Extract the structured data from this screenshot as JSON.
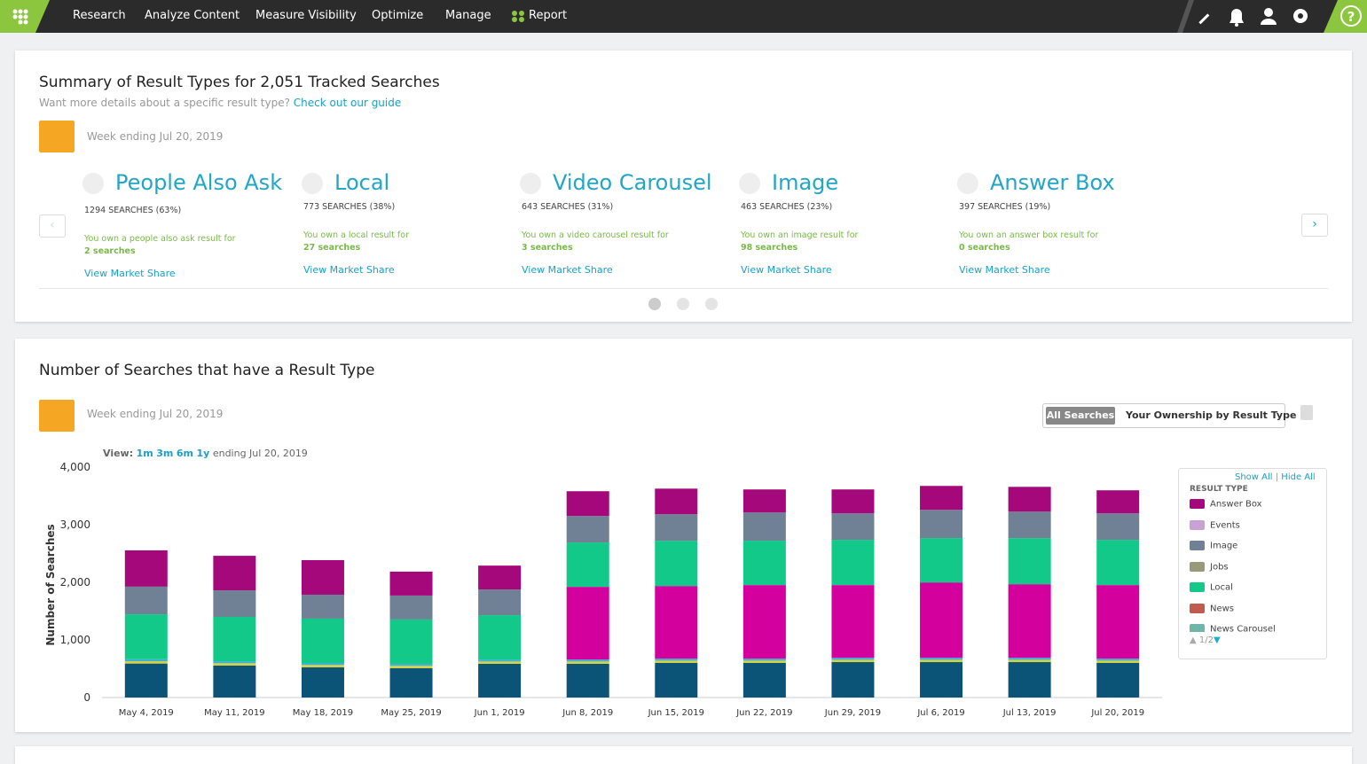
{
  "nav": {
    "items": [
      "Research",
      "Analyze Content",
      "Measure Visibility",
      "Optimize",
      "Manage",
      "Report"
    ]
  },
  "summary": {
    "title": "Summary of Result Types for 2,051 Tracked Searches",
    "subtitle": "Want more details about a specific result type?",
    "guide_link": "Check out our guide",
    "week": "Week ending Jul 20, 2019",
    "items": [
      {
        "title": "People Also Ask",
        "count": "1294 SEARCHES (63%)",
        "own_text": "You own a people also ask result for",
        "own_count": "2 searches",
        "link": "View Market Share"
      },
      {
        "title": "Local",
        "count": "773 SEARCHES (38%)",
        "own_text": "You own a local result for",
        "own_count": "27 searches",
        "link": "View Market Share"
      },
      {
        "title": "Video Carousel",
        "count": "643 SEARCHES (31%)",
        "own_text": "You own a video carousel result for",
        "own_count": "3 searches",
        "link": "View Market Share"
      },
      {
        "title": "Image",
        "count": "463 SEARCHES (23%)",
        "own_text": "You own an image result for",
        "own_count": "98 searches",
        "link": "View Market Share"
      },
      {
        "title": "Answer Box",
        "count": "397 SEARCHES (19%)",
        "own_text": "You own an answer box result for",
        "own_count": "0 searches",
        "link": "View Market Share"
      }
    ]
  },
  "searches": {
    "title": "Number of Searches that have a Result Type",
    "week": "Week ending Jul 20, 2019",
    "toggle": [
      "All Searches",
      "Your Ownership by Result Type"
    ],
    "view_label": "View:",
    "ranges": [
      "1m",
      "3m",
      "6m",
      "1y"
    ],
    "ending": "ending Jul 20, 2019",
    "legend": {
      "show_all": "Show All",
      "hide_all": "Hide All",
      "title": "RESULT TYPE",
      "pager": "1/2"
    }
  },
  "chart_data": {
    "type": "stacked_bar",
    "ylabel": "Number of Searches",
    "categories": [
      "May 4, 2019",
      "May 11, 2019",
      "May 18, 2019",
      "May 25, 2019",
      "Jun 1, 2019",
      "Jun 8, 2019",
      "Jun 15, 2019",
      "Jun 22, 2019",
      "Jun 29, 2019",
      "Jul 6, 2019",
      "Jul 13, 2019",
      "Jul 20, 2019"
    ],
    "ylim": [
      0,
      4000
    ],
    "yticks": [
      0,
      {
        "value": 1000,
        "label": "1,000"
      },
      {
        "value": 2000,
        "label": "2,000"
      },
      {
        "value": 3000,
        "label": "3,000"
      },
      {
        "value": 4000,
        "label": "4,000"
      }
    ],
    "series": [
      {
        "color": "#0b5377",
        "values": [
          590,
          555,
          525,
          510,
          585,
          585,
          600,
          600,
          615,
          615,
          615,
          600
        ]
      },
      {
        "color": "#d4d23a",
        "values": [
          40,
          40,
          40,
          40,
          40,
          40,
          40,
          40,
          40,
          40,
          40,
          40
        ]
      },
      {
        "color": "#3fb1d4",
        "values": [
          35,
          35,
          35,
          35,
          35,
          35,
          35,
          35,
          35,
          35,
          35,
          35
        ]
      },
      {
        "color": "#d3009e",
        "values": [
          0,
          0,
          0,
          0,
          0,
          1261,
          1261,
          1277,
          1262,
          1308,
          1277,
          1277
        ]
      },
      {
        "name": "News Carousel",
        "color": "#6fb5a8",
        "values": [
          0,
          0,
          0,
          0,
          0,
          0,
          0,
          0,
          0,
          0,
          0,
          0
        ]
      },
      {
        "name": "News",
        "color": "#c25b4f",
        "values": [
          0,
          0,
          0,
          0,
          0,
          0,
          0,
          0,
          0,
          0,
          0,
          0
        ]
      },
      {
        "name": "Local",
        "color": "#12c98a",
        "values": [
          780,
          770,
          770,
          770,
          770,
          770,
          785,
          770,
          785,
          770,
          800,
          785
        ]
      },
      {
        "name": "Jobs",
        "color": "#9a9a7a",
        "values": [
          0,
          0,
          0,
          0,
          0,
          0,
          0,
          0,
          0,
          0,
          0,
          0
        ]
      },
      {
        "name": "Image",
        "color": "#708196",
        "values": [
          480,
          460,
          415,
          415,
          445,
          460,
          460,
          490,
          460,
          490,
          460,
          460
        ]
      },
      {
        "name": "Events",
        "color": "#c9a1d6",
        "values": [
          0,
          0,
          0,
          0,
          0,
          0,
          0,
          0,
          0,
          0,
          0,
          0
        ]
      },
      {
        "name": "Answer Box",
        "color": "#a4087a",
        "values": [
          630,
          600,
          600,
          415,
          415,
          430,
          445,
          400,
          415,
          415,
          430,
          400
        ]
      }
    ]
  }
}
